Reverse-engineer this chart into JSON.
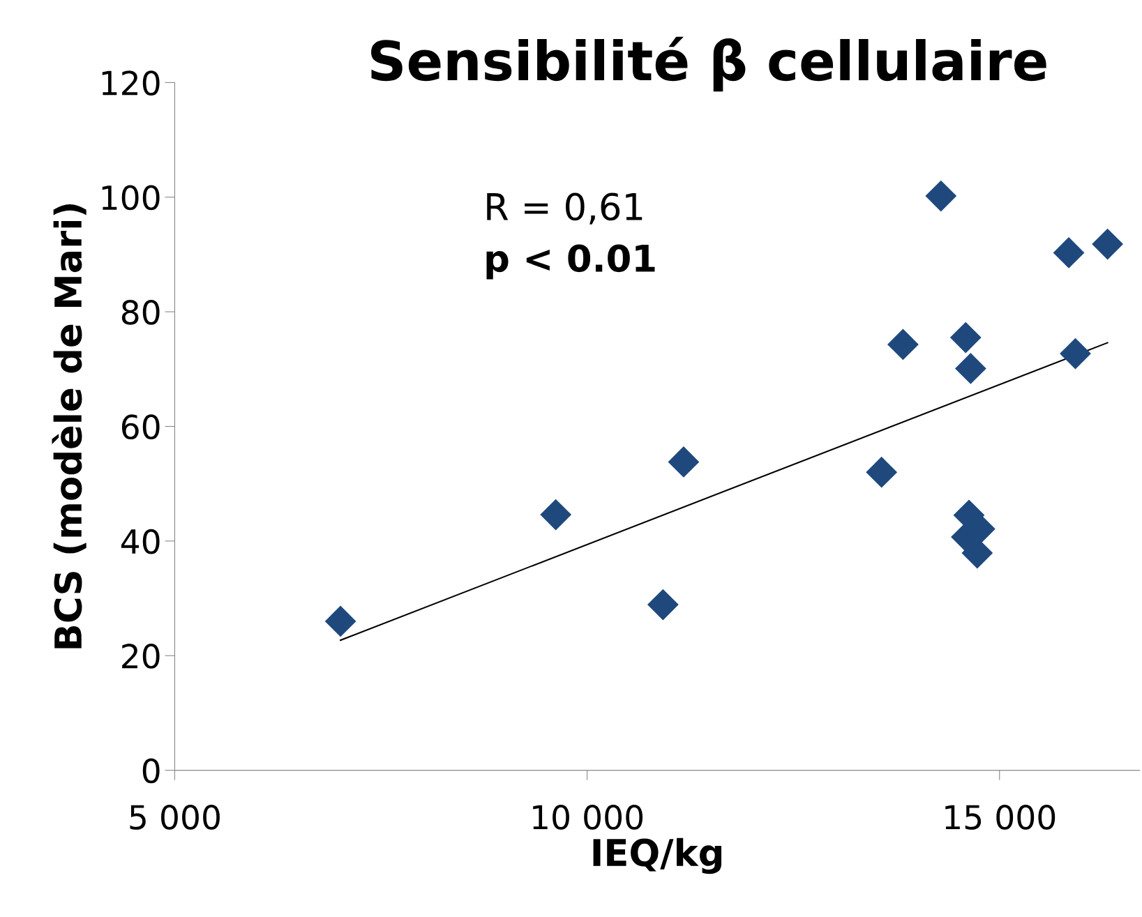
{
  "chart_data": {
    "type": "scatter",
    "title": "Sensibilité β cellulaire",
    "xlabel": "IEQ/kg",
    "ylabel": "BCS (modèle de Mari)",
    "annotations": [
      "R = 0,61",
      "p < 0.01"
    ],
    "marker": "diamond",
    "grid": false,
    "legend": false,
    "xlim": [
      5000,
      16700
    ],
    "xticks": [
      {
        "value": 5000,
        "label": "5 000"
      },
      {
        "value": 10000,
        "label": "10 000"
      },
      {
        "value": 15000,
        "label": "15 000"
      }
    ],
    "ylim": [
      0,
      120
    ],
    "yticks": [
      0,
      20,
      40,
      60,
      80,
      100,
      120
    ],
    "series": [
      {
        "color": "#1f497d",
        "x": [
          7010,
          9620,
          10920,
          11170,
          13570,
          13830,
          14290,
          14590,
          14650,
          14630,
          14600,
          14760,
          14730,
          15840,
          15920,
          16310
        ],
        "values": [
          26,
          44.6,
          28.9,
          53.8,
          52,
          74.3,
          100.2,
          75.5,
          70.1,
          44.5,
          40.7,
          42.1,
          37.9,
          90.3,
          72.7,
          91.8
        ]
      },
      {
        "type": "line",
        "color": "#000000",
        "marker": "none",
        "x": [
          7010,
          16310
        ],
        "values": [
          22.7,
          74.6
        ]
      }
    ]
  }
}
